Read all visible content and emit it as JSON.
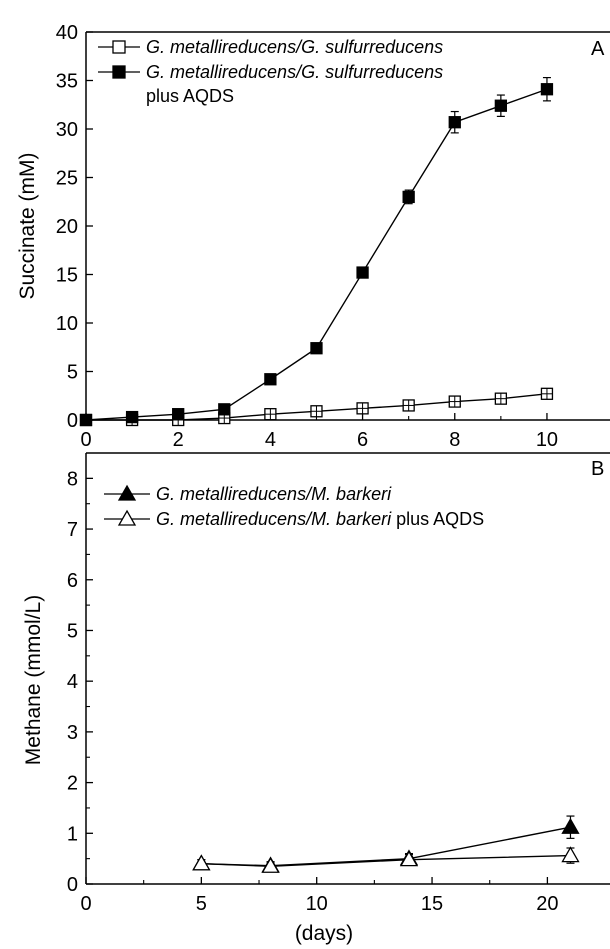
{
  "chart_data": [
    {
      "type": "line",
      "panel_label": "A",
      "ylabel": "Succinate (mM)",
      "xlabel": "",
      "xlim": [
        0,
        10.5
      ],
      "ylim": [
        0,
        40
      ],
      "x_ticks": [
        "0",
        "2",
        "4",
        "6",
        "8",
        "10"
      ],
      "y_ticks": [
        "0",
        "5",
        "10",
        "15",
        "20",
        "25",
        "30",
        "35",
        "40"
      ],
      "legend_position": "top-left",
      "series": [
        {
          "name_italic": "G. metallireducens/G. sulfurreducens",
          "name_suffix": "",
          "marker": "open-square",
          "x": [
            0,
            1,
            2,
            3,
            4,
            5,
            6,
            7,
            8,
            9,
            10
          ],
          "y": [
            0,
            0,
            0,
            0.2,
            0.6,
            0.9,
            1.2,
            1.5,
            1.9,
            2.2,
            2.7
          ],
          "err": [
            0,
            0,
            0,
            0.3,
            0.4,
            0.4,
            0.4,
            0.4,
            0.5,
            0.5,
            0.5
          ]
        },
        {
          "name_italic": "G. metallireducens/G. sulfurreducens",
          "name_suffix": "plus AQDS",
          "marker": "filled-square",
          "x": [
            0,
            1,
            2,
            3,
            4,
            5,
            6,
            7,
            8,
            9,
            10
          ],
          "y": [
            0,
            0.3,
            0.6,
            1.1,
            4.2,
            7.4,
            15.2,
            23.0,
            30.7,
            32.4,
            34.1
          ],
          "err": [
            0,
            0.1,
            0.1,
            0.2,
            0.3,
            0.3,
            0.4,
            0.7,
            1.1,
            1.1,
            1.2
          ]
        }
      ]
    },
    {
      "type": "line",
      "panel_label": "B",
      "ylabel": "Methane (mmol/L)",
      "xlabel": "(days)",
      "xlim": [
        0,
        21.5
      ],
      "ylim": [
        0,
        8.5
      ],
      "x_ticks": [
        "0",
        "5",
        "10",
        "15",
        "20"
      ],
      "y_ticks": [
        "0",
        "1",
        "2",
        "3",
        "4",
        "5",
        "6",
        "7",
        "8"
      ],
      "legend_position": "top-left",
      "series": [
        {
          "name_italic": "G. metallireducens/M. barkeri",
          "name_suffix": "",
          "marker": "filled-triangle",
          "x": [
            5,
            8,
            14,
            21
          ],
          "y": [
            0.4,
            0.36,
            0.5,
            1.12
          ],
          "err": [
            0.08,
            0.08,
            0.1,
            0.22
          ]
        },
        {
          "name_italic": "G. metallireducens/M. barkeri",
          "name_suffix": "plus AQDS",
          "marker": "open-triangle",
          "x": [
            5,
            8,
            14,
            21
          ],
          "y": [
            0.4,
            0.35,
            0.48,
            0.56
          ],
          "err": [
            0.08,
            0.08,
            0.1,
            0.15
          ]
        }
      ]
    }
  ]
}
